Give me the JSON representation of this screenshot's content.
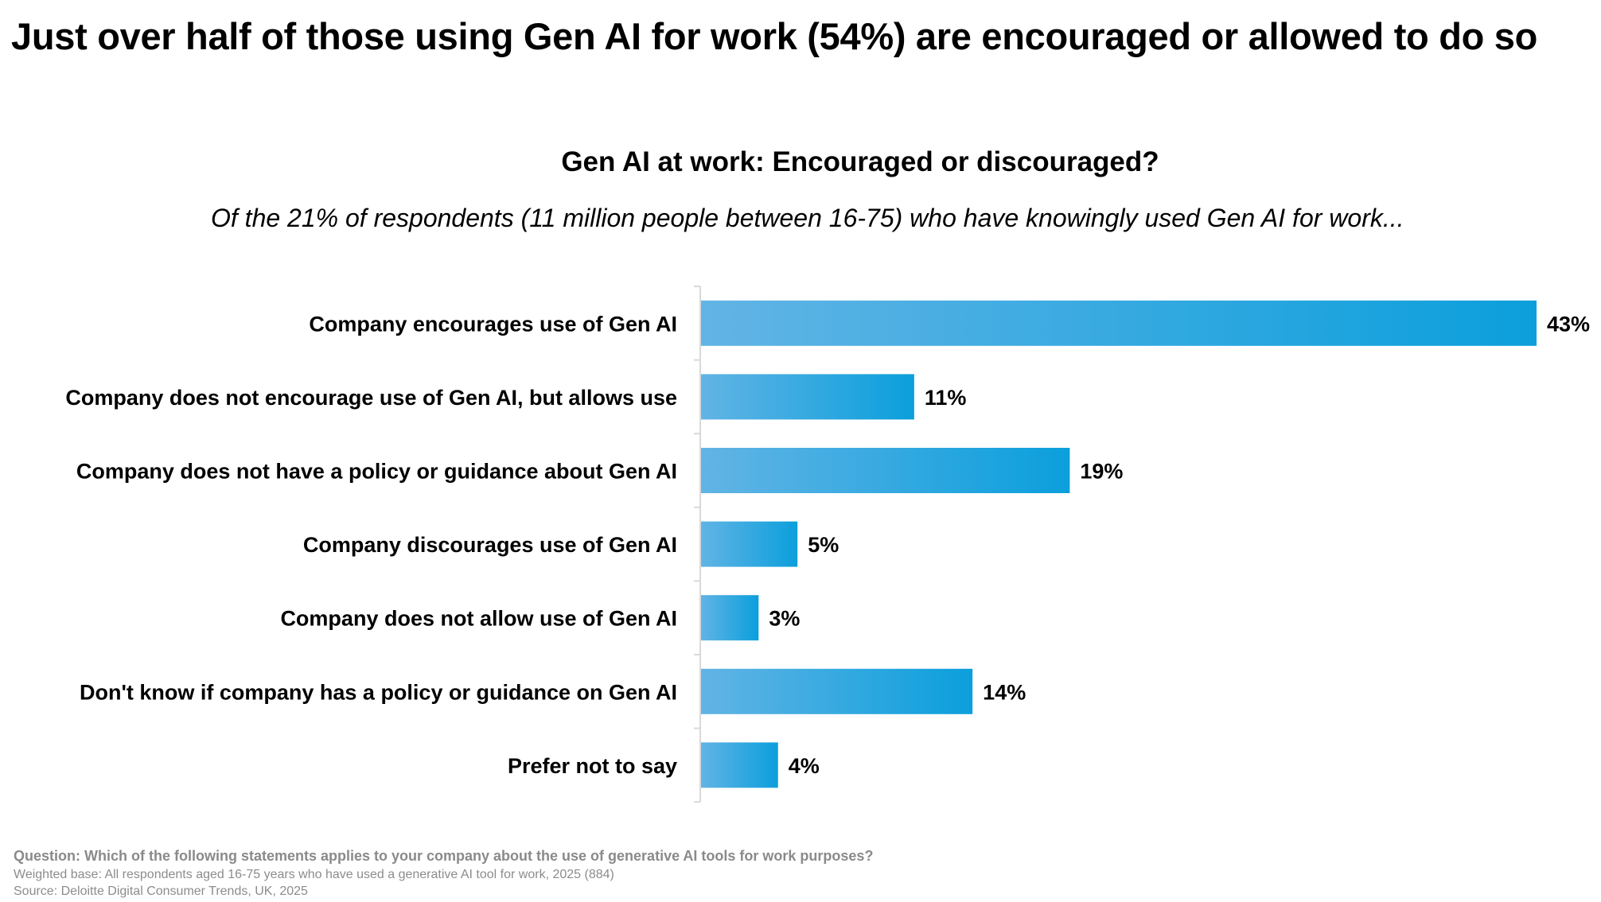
{
  "headline": "Just over half of those using Gen AI for work (54%) are encouraged or allowed to do so",
  "chart_data": {
    "type": "bar",
    "orientation": "horizontal",
    "title": "Gen AI at work: Encouraged or discouraged?",
    "subtitle": "Of the 21% of respondents (11 million people between 16-75) who have knowingly used Gen AI for work...",
    "categories": [
      "Company encourages use of Gen AI",
      "Company does not encourage use of Gen AI, but allows use",
      "Company does not have a policy or guidance about Gen AI",
      "Company discourages use of Gen AI",
      "Company does not allow use of Gen AI",
      "Don't know if company has a policy or guidance on Gen AI",
      "Prefer not to say"
    ],
    "values": [
      43,
      11,
      19,
      5,
      3,
      14,
      4
    ],
    "value_labels": [
      "43%",
      "11%",
      "19%",
      "5%",
      "3%",
      "14%",
      "4%"
    ],
    "unit": "%",
    "xlim": [
      0,
      43
    ],
    "grid": false,
    "bar_color_start": "#62b4e5",
    "bar_color_end": "#0b9fdc",
    "axis_color": "#d9d9d9"
  },
  "footnotes": {
    "question": "Question: Which of the following statements applies to your company about the use of generative AI tools for work purposes?",
    "base": "Weighted base: All respondents aged 16-75 years who have used a generative AI tool for work, 2025 (884)",
    "source": "Source: Deloitte Digital Consumer Trends, UK, 2025"
  }
}
